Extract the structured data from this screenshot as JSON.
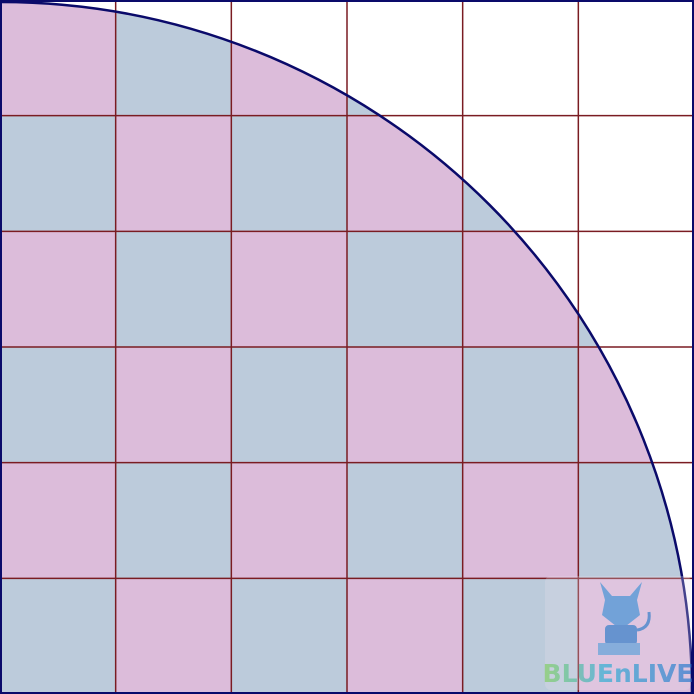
{
  "grid": {
    "rows": 6,
    "cols": 6
  },
  "colors": {
    "pink": "#dcbcda",
    "blue": "#bccbdb",
    "outside": "#ffffff",
    "grid_line": "#7a1c22",
    "arc": "#0a0a6a"
  },
  "watermark": {
    "text": "BLUEnLIVE"
  }
}
